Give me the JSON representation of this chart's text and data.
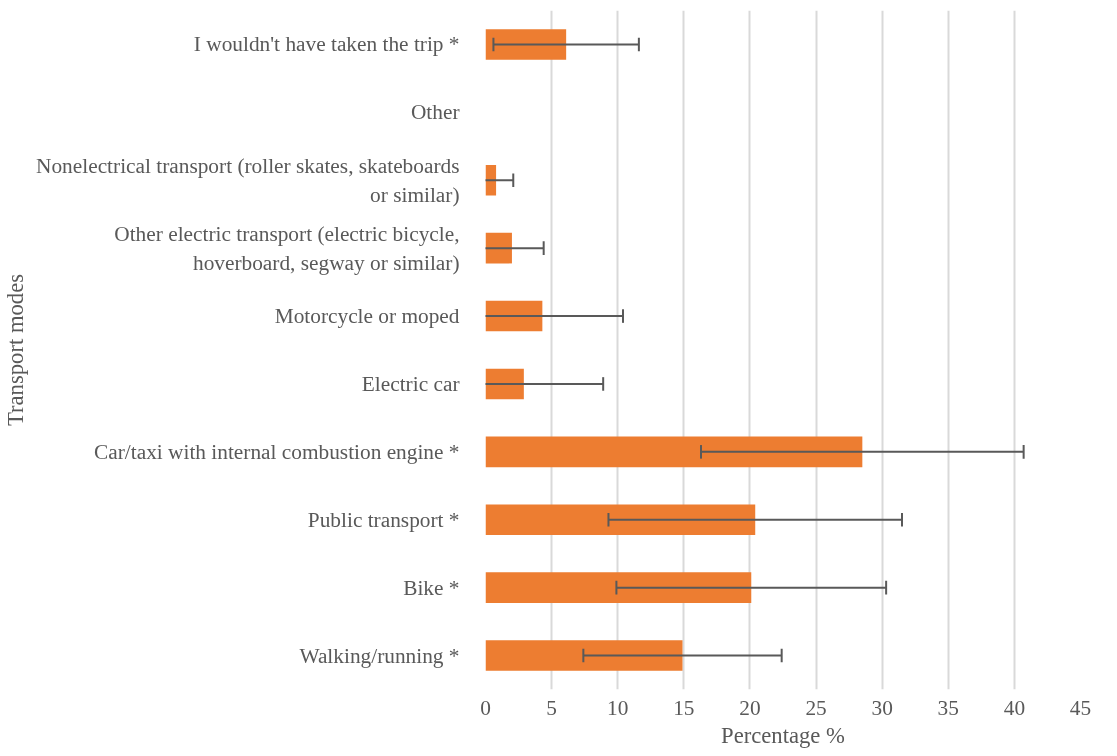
{
  "chart_data": {
    "type": "bar",
    "orientation": "horizontal",
    "xlabel": "Percentage %",
    "ylabel": "Transport modes",
    "categories": [
      "I wouldn't have taken the trip *",
      "Other",
      "Nonelectrical transport (roller skates, skateboards or similar)",
      "Other electric transport (electric bicycle, hoverboard, segway or similar)",
      "Motorcycle or moped",
      "Electric car",
      "Car/taxi with internal combustion engine *",
      "Public transport *",
      "Bike *",
      "Walking/running *"
    ],
    "values": [
      6.1,
      0,
      0.8,
      2.0,
      4.3,
      2.9,
      28.5,
      20.4,
      20.1,
      14.9
    ],
    "errors": [
      5.5,
      null,
      1.3,
      2.4,
      6.1,
      6.0,
      12.2,
      11.1,
      10.2,
      7.5
    ],
    "color": "#ed7d31",
    "xlim": [
      0,
      45
    ],
    "xticks": [
      0,
      5,
      10,
      15,
      20,
      25,
      30,
      35,
      40,
      45
    ],
    "grid": "x"
  }
}
